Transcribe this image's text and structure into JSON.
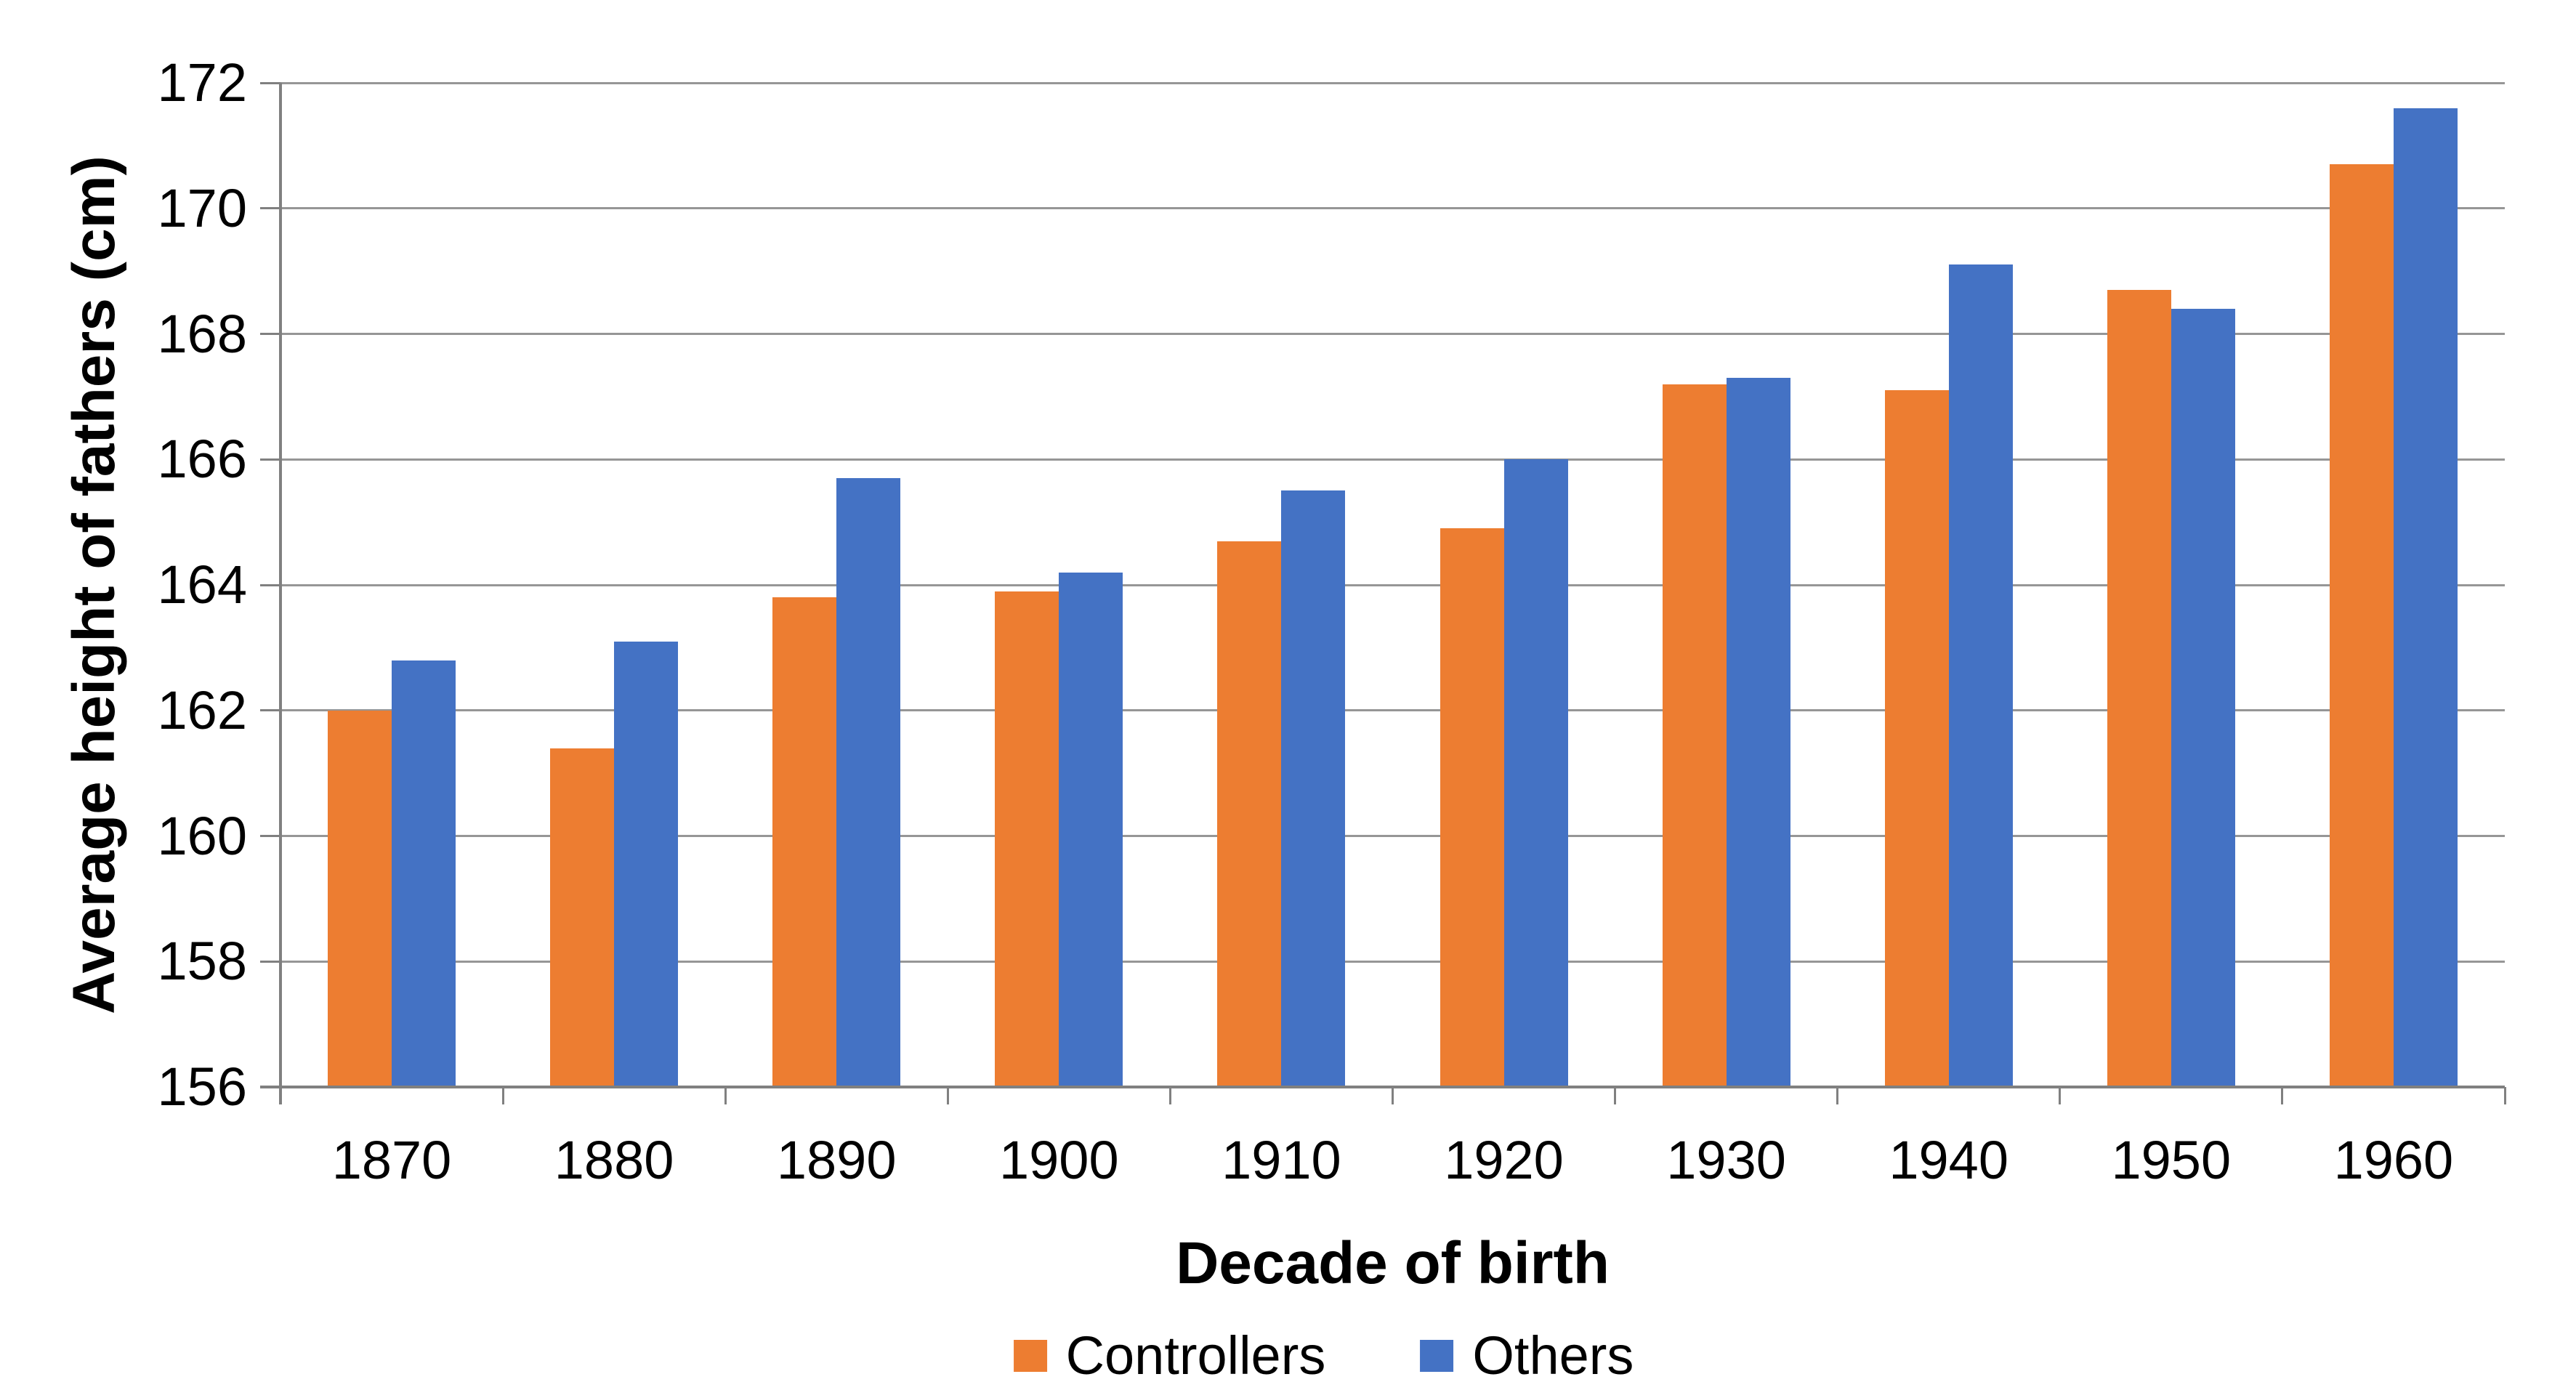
{
  "chart_data": {
    "type": "bar",
    "title": "",
    "categories": [
      "1870",
      "1880",
      "1890",
      "1900",
      "1910",
      "1920",
      "1930",
      "1940",
      "1950",
      "1960"
    ],
    "series": [
      {
        "name": "Controllers",
        "color": "#ED7D31",
        "values": [
          162.0,
          161.4,
          163.8,
          163.9,
          164.7,
          164.9,
          167.2,
          167.1,
          168.7,
          170.7
        ]
      },
      {
        "name": "Others",
        "color": "#4472C4",
        "values": [
          162.8,
          163.1,
          165.7,
          164.2,
          165.5,
          166.0,
          167.3,
          169.1,
          168.4,
          171.6
        ]
      }
    ],
    "xlabel": "Decade of birth",
    "ylabel": "Average height of fathers (cm)",
    "ylim": [
      156,
      172
    ],
    "yticks": [
      156,
      158,
      160,
      162,
      164,
      166,
      168,
      170,
      172
    ],
    "grid": true,
    "legend_position": "bottom"
  },
  "colors": {
    "background": "#FFFFFF",
    "gridline": "#969696",
    "axis": "#808080",
    "text": "#000000",
    "controllers": "#ED7D31",
    "others": "#4472C4"
  }
}
